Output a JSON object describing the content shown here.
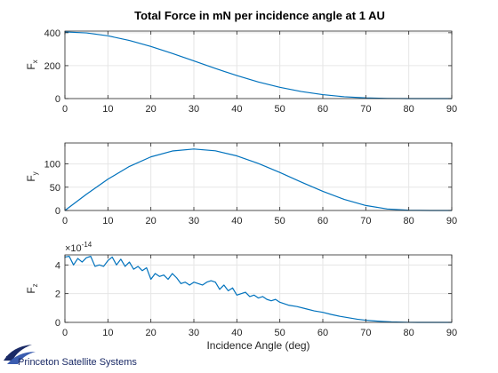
{
  "figure": {
    "title": "Total Force in mN per incidence angle at 1 AU",
    "logo_text": "Princeton Satellite Systems",
    "colors": {
      "line": "#0072BD",
      "grid": "#e6e6e6",
      "axis": "#262626"
    }
  },
  "chart_data": [
    {
      "type": "line",
      "ylabel_main": "F",
      "ylabel_sub": "x",
      "xlabel": "",
      "xlim": [
        0,
        90
      ],
      "ylim": [
        0,
        410
      ],
      "grid": true,
      "xticks": [
        0,
        10,
        20,
        30,
        40,
        50,
        60,
        70,
        80,
        90
      ],
      "yticks": [
        0,
        200,
        400
      ],
      "exponent_label": "",
      "series": [
        {
          "x": [
            0,
            5,
            10,
            15,
            20,
            25,
            30,
            35,
            40,
            45,
            50,
            55,
            60,
            65,
            70,
            75,
            80,
            85,
            90
          ],
          "values": [
            405,
            399.0,
            381.2,
            353.0,
            316.5,
            274.1,
            228.7,
            183.0,
            139.7,
            101.0,
            68.5,
            42.7,
            23.8,
            11.0,
            3.9,
            0.9,
            0.1,
            0.0,
            0
          ]
        }
      ]
    },
    {
      "type": "line",
      "ylabel_main": "F",
      "ylabel_sub": "y",
      "xlabel": "",
      "xlim": [
        0,
        90
      ],
      "ylim": [
        0,
        145
      ],
      "grid": true,
      "xticks": [
        0,
        10,
        20,
        30,
        40,
        50,
        60,
        70,
        80,
        90
      ],
      "yticks": [
        0,
        50,
        100
      ],
      "exponent_label": "",
      "series": [
        {
          "x": [
            0,
            5,
            10,
            15,
            20,
            25,
            30,
            35,
            40,
            45,
            50,
            55,
            60,
            65,
            70,
            75,
            80,
            85,
            90
          ],
          "values": [
            0,
            34.9,
            67.2,
            94.6,
            115.2,
            127.8,
            132.0,
            128.2,
            117.3,
            101.0,
            81.6,
            61.0,
            41.2,
            23.7,
            10.7,
            3.2,
            0.5,
            0.0,
            0
          ]
        }
      ]
    },
    {
      "type": "line",
      "ylabel_main": "F",
      "ylabel_sub": "z",
      "xlabel": "Incidence Angle (deg)",
      "xlim": [
        0,
        90
      ],
      "ylim": [
        0,
        4.7
      ],
      "grid": true,
      "xticks": [
        0,
        10,
        20,
        30,
        40,
        50,
        60,
        70,
        80,
        90
      ],
      "yticks": [
        0,
        2,
        4
      ],
      "exponent_label": "×10",
      "exponent_power": "-14",
      "series": [
        {
          "x": [
            0,
            1,
            2,
            3,
            4,
            5,
            6,
            7,
            8,
            9,
            10,
            11,
            12,
            13,
            14,
            15,
            16,
            17,
            18,
            19,
            20,
            21,
            22,
            23,
            24,
            25,
            26,
            27,
            28,
            29,
            30,
            31,
            32,
            33,
            34,
            35,
            36,
            37,
            38,
            39,
            40,
            41,
            42,
            43,
            44,
            45,
            46,
            47,
            48,
            49,
            50,
            52,
            54,
            56,
            58,
            60,
            62,
            64,
            66,
            68,
            70,
            72,
            74,
            76,
            78,
            80,
            82,
            84,
            86,
            88,
            90
          ],
          "values": [
            4.55,
            4.6,
            4.0,
            4.45,
            4.2,
            4.5,
            4.6,
            3.9,
            4.0,
            3.9,
            4.3,
            4.55,
            4.0,
            4.4,
            3.9,
            4.2,
            3.7,
            3.9,
            3.6,
            3.8,
            3.0,
            3.4,
            3.2,
            3.3,
            3.0,
            3.4,
            3.1,
            2.7,
            2.8,
            2.6,
            2.8,
            2.7,
            2.6,
            2.8,
            2.9,
            2.8,
            2.3,
            2.6,
            2.2,
            2.4,
            1.9,
            2.0,
            2.1,
            1.8,
            1.9,
            1.7,
            1.8,
            1.6,
            1.5,
            1.6,
            1.4,
            1.2,
            1.1,
            0.95,
            0.8,
            0.7,
            0.55,
            0.42,
            0.32,
            0.22,
            0.15,
            0.1,
            0.06,
            0.03,
            0.015,
            0.005,
            0.0,
            0.0,
            0.0,
            0.0,
            0.0
          ]
        }
      ]
    }
  ]
}
